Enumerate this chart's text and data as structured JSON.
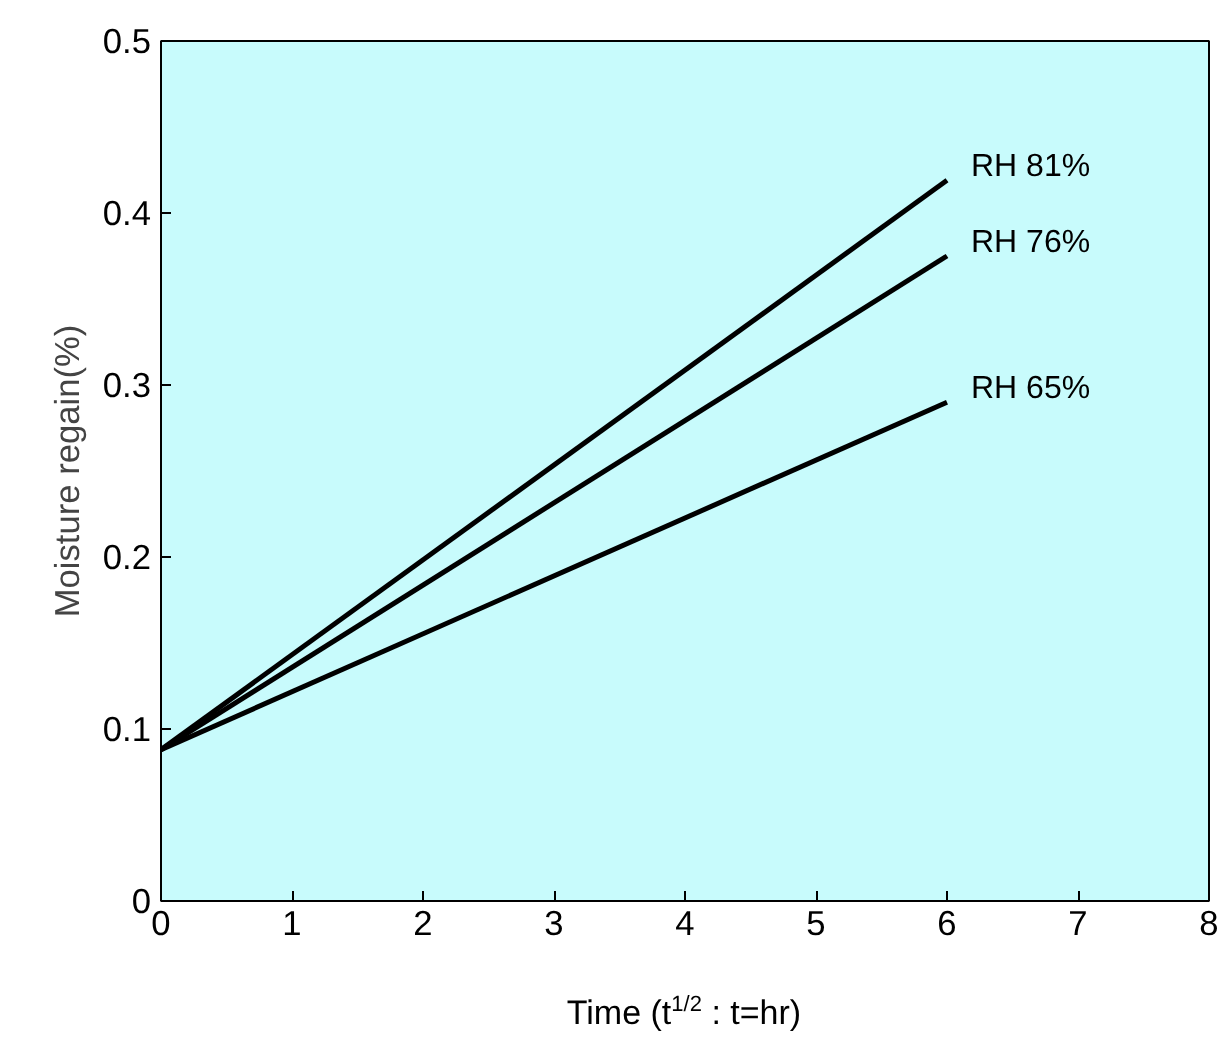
{
  "chart_data": {
    "type": "line",
    "xlabel": "Time (t$^{1/2}$ : t=hr)",
    "ylabel": "Moisture regain(%)",
    "x": [
      0,
      6
    ],
    "series": [
      {
        "name": "RH 81%",
        "color": "#000000",
        "values": [
          0.088,
          0.419
        ]
      },
      {
        "name": "RH 76%",
        "color": "#000000",
        "values": [
          0.088,
          0.375
        ]
      },
      {
        "name": "RH 65%",
        "color": "#000000",
        "values": [
          0.088,
          0.29
        ]
      }
    ],
    "xlim": [
      0,
      8
    ],
    "ylim": [
      0,
      0.5
    ],
    "xticks": [
      0,
      1,
      2,
      3,
      4,
      5,
      6,
      7,
      8
    ],
    "yticks": [
      0,
      0.1,
      0.2,
      0.3,
      0.4,
      0.5
    ],
    "grid": false,
    "marker": "none",
    "line_style": "solid"
  }
}
